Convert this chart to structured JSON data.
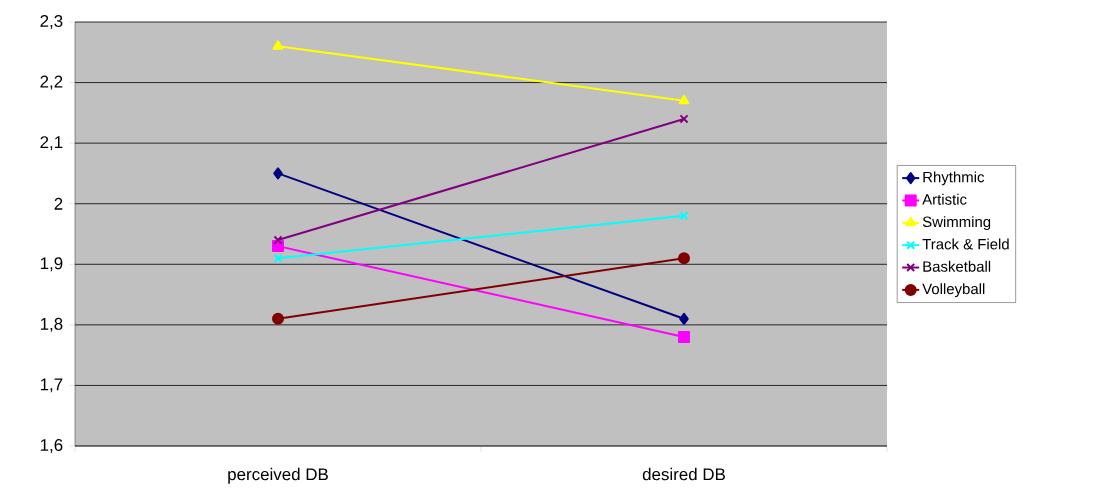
{
  "chart_data": {
    "type": "line",
    "categories": [
      "perceived DB",
      "desired DB"
    ],
    "series": [
      {
        "name": "Rhythmic",
        "color": "#000080",
        "marker": "diamond",
        "values": [
          2.05,
          1.81
        ]
      },
      {
        "name": "Artistic",
        "color": "#ff00ff",
        "marker": "square",
        "values": [
          1.93,
          1.78
        ]
      },
      {
        "name": "Swimming",
        "color": "#ffff00",
        "marker": "triangle",
        "values": [
          2.26,
          2.17
        ]
      },
      {
        "name": "Track & Field",
        "color": "#00ffff",
        "marker": "cross",
        "values": [
          1.91,
          1.98
        ]
      },
      {
        "name": "Basketball",
        "color": "#800080",
        "marker": "cross",
        "values": [
          1.94,
          2.14
        ]
      },
      {
        "name": "Volleyball",
        "color": "#800000",
        "marker": "circle",
        "values": [
          1.81,
          1.91
        ]
      }
    ],
    "ylim": [
      1.6,
      2.3
    ],
    "yticks": [
      {
        "value": 1.6,
        "label": "1,6"
      },
      {
        "value": 1.7,
        "label": "1,7"
      },
      {
        "value": 1.8,
        "label": "1,8"
      },
      {
        "value": 1.9,
        "label": "1,9"
      },
      2,
      {
        "value": 2.1,
        "label": "2,1"
      },
      {
        "value": 2.2,
        "label": "2,2"
      },
      {
        "value": 2.3,
        "label": "2,3"
      }
    ],
    "grid": "y",
    "legend": "right",
    "line_style": "solid"
  }
}
